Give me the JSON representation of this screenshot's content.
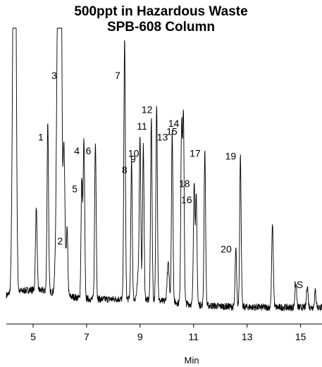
{
  "chart_data": {
    "type": "line",
    "title": "500ppt in Hazardous Waste",
    "subtitle": "SPB-608 Column",
    "xlabel": "Min",
    "ylabel": "",
    "xlim": [
      4.0,
      15.8
    ],
    "x_ticks": [
      5,
      7,
      9,
      11,
      13,
      15
    ],
    "grid": false,
    "peaks": [
      {
        "label": "1",
        "x": 5.55,
        "y": 0.62
      },
      {
        "label": "2",
        "x": 6.27,
        "y": 0.24
      },
      {
        "label": "3",
        "x": 6.05,
        "y": 1.0
      },
      {
        "label": "4",
        "x": 6.9,
        "y": 0.57
      },
      {
        "label": "5",
        "x": 6.82,
        "y": 0.43
      },
      {
        "label": "6",
        "x": 7.33,
        "y": 0.57
      },
      {
        "label": "7",
        "x": 8.42,
        "y": 0.95
      },
      {
        "label": "8",
        "x": 8.68,
        "y": 0.5
      },
      {
        "label": "9",
        "x": 9.0,
        "y": 0.54
      },
      {
        "label": "10",
        "x": 9.12,
        "y": 0.56
      },
      {
        "label": "11",
        "x": 9.42,
        "y": 0.66
      },
      {
        "label": "12",
        "x": 9.62,
        "y": 0.72
      },
      {
        "label": "13",
        "x": 10.2,
        "y": 0.62
      },
      {
        "label": "14",
        "x": 10.62,
        "y": 0.67
      },
      {
        "label": "15",
        "x": 10.55,
        "y": 0.64
      },
      {
        "label": "16",
        "x": 11.1,
        "y": 0.39
      },
      {
        "label": "17",
        "x": 11.42,
        "y": 0.56
      },
      {
        "label": "18",
        "x": 11.02,
        "y": 0.45
      },
      {
        "label": "19",
        "x": 12.75,
        "y": 0.55
      },
      {
        "label": "20",
        "x": 12.58,
        "y": 0.21
      },
      {
        "label": "IS",
        "x": 15.25,
        "y": 0.08
      }
    ]
  }
}
